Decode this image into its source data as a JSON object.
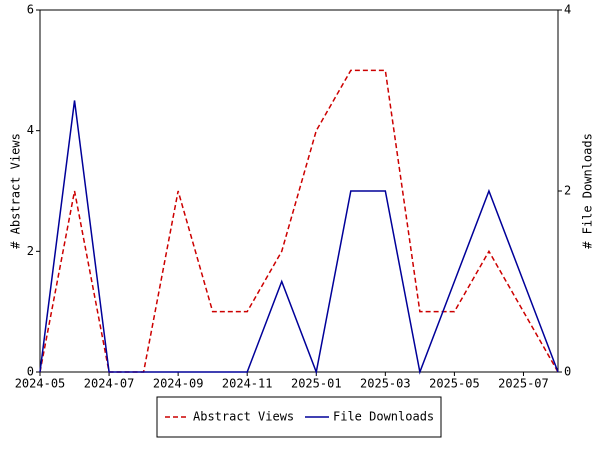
{
  "chart_data": {
    "type": "line",
    "x": [
      "2024-05",
      "2024-06",
      "2024-07",
      "2024-08",
      "2024-09",
      "2024-10",
      "2024-11",
      "2024-12",
      "2025-01",
      "2025-02",
      "2025-03",
      "2025-04",
      "2025-05",
      "2025-06",
      "2025-07",
      "2025-08"
    ],
    "xticks": [
      "2024-05",
      "2024-07",
      "2024-09",
      "2024-11",
      "2025-01",
      "2025-03",
      "2025-05",
      "2025-07"
    ],
    "y_label": "# Abstract Views",
    "y2_label": "# File Downloads",
    "ylim": [
      0,
      6
    ],
    "yticks": [
      0,
      2,
      4,
      6
    ],
    "y2lim": [
      0,
      4
    ],
    "y2ticks": [
      0,
      2,
      4
    ],
    "legend": "bottom",
    "series": [
      {
        "name": "Abstract Views",
        "color": "#cc0000",
        "dash": true,
        "values": [
          0,
          3,
          0,
          0,
          3,
          1,
          1,
          2,
          4,
          5,
          5,
          1,
          1,
          2,
          1,
          0
        ]
      },
      {
        "name": "File Downloads",
        "color": "#000099",
        "dash": false,
        "axis": "y2",
        "values": [
          0,
          3,
          0,
          0,
          0,
          0,
          0,
          1,
          0,
          2,
          2,
          0,
          1,
          2,
          1,
          0
        ]
      }
    ]
  }
}
